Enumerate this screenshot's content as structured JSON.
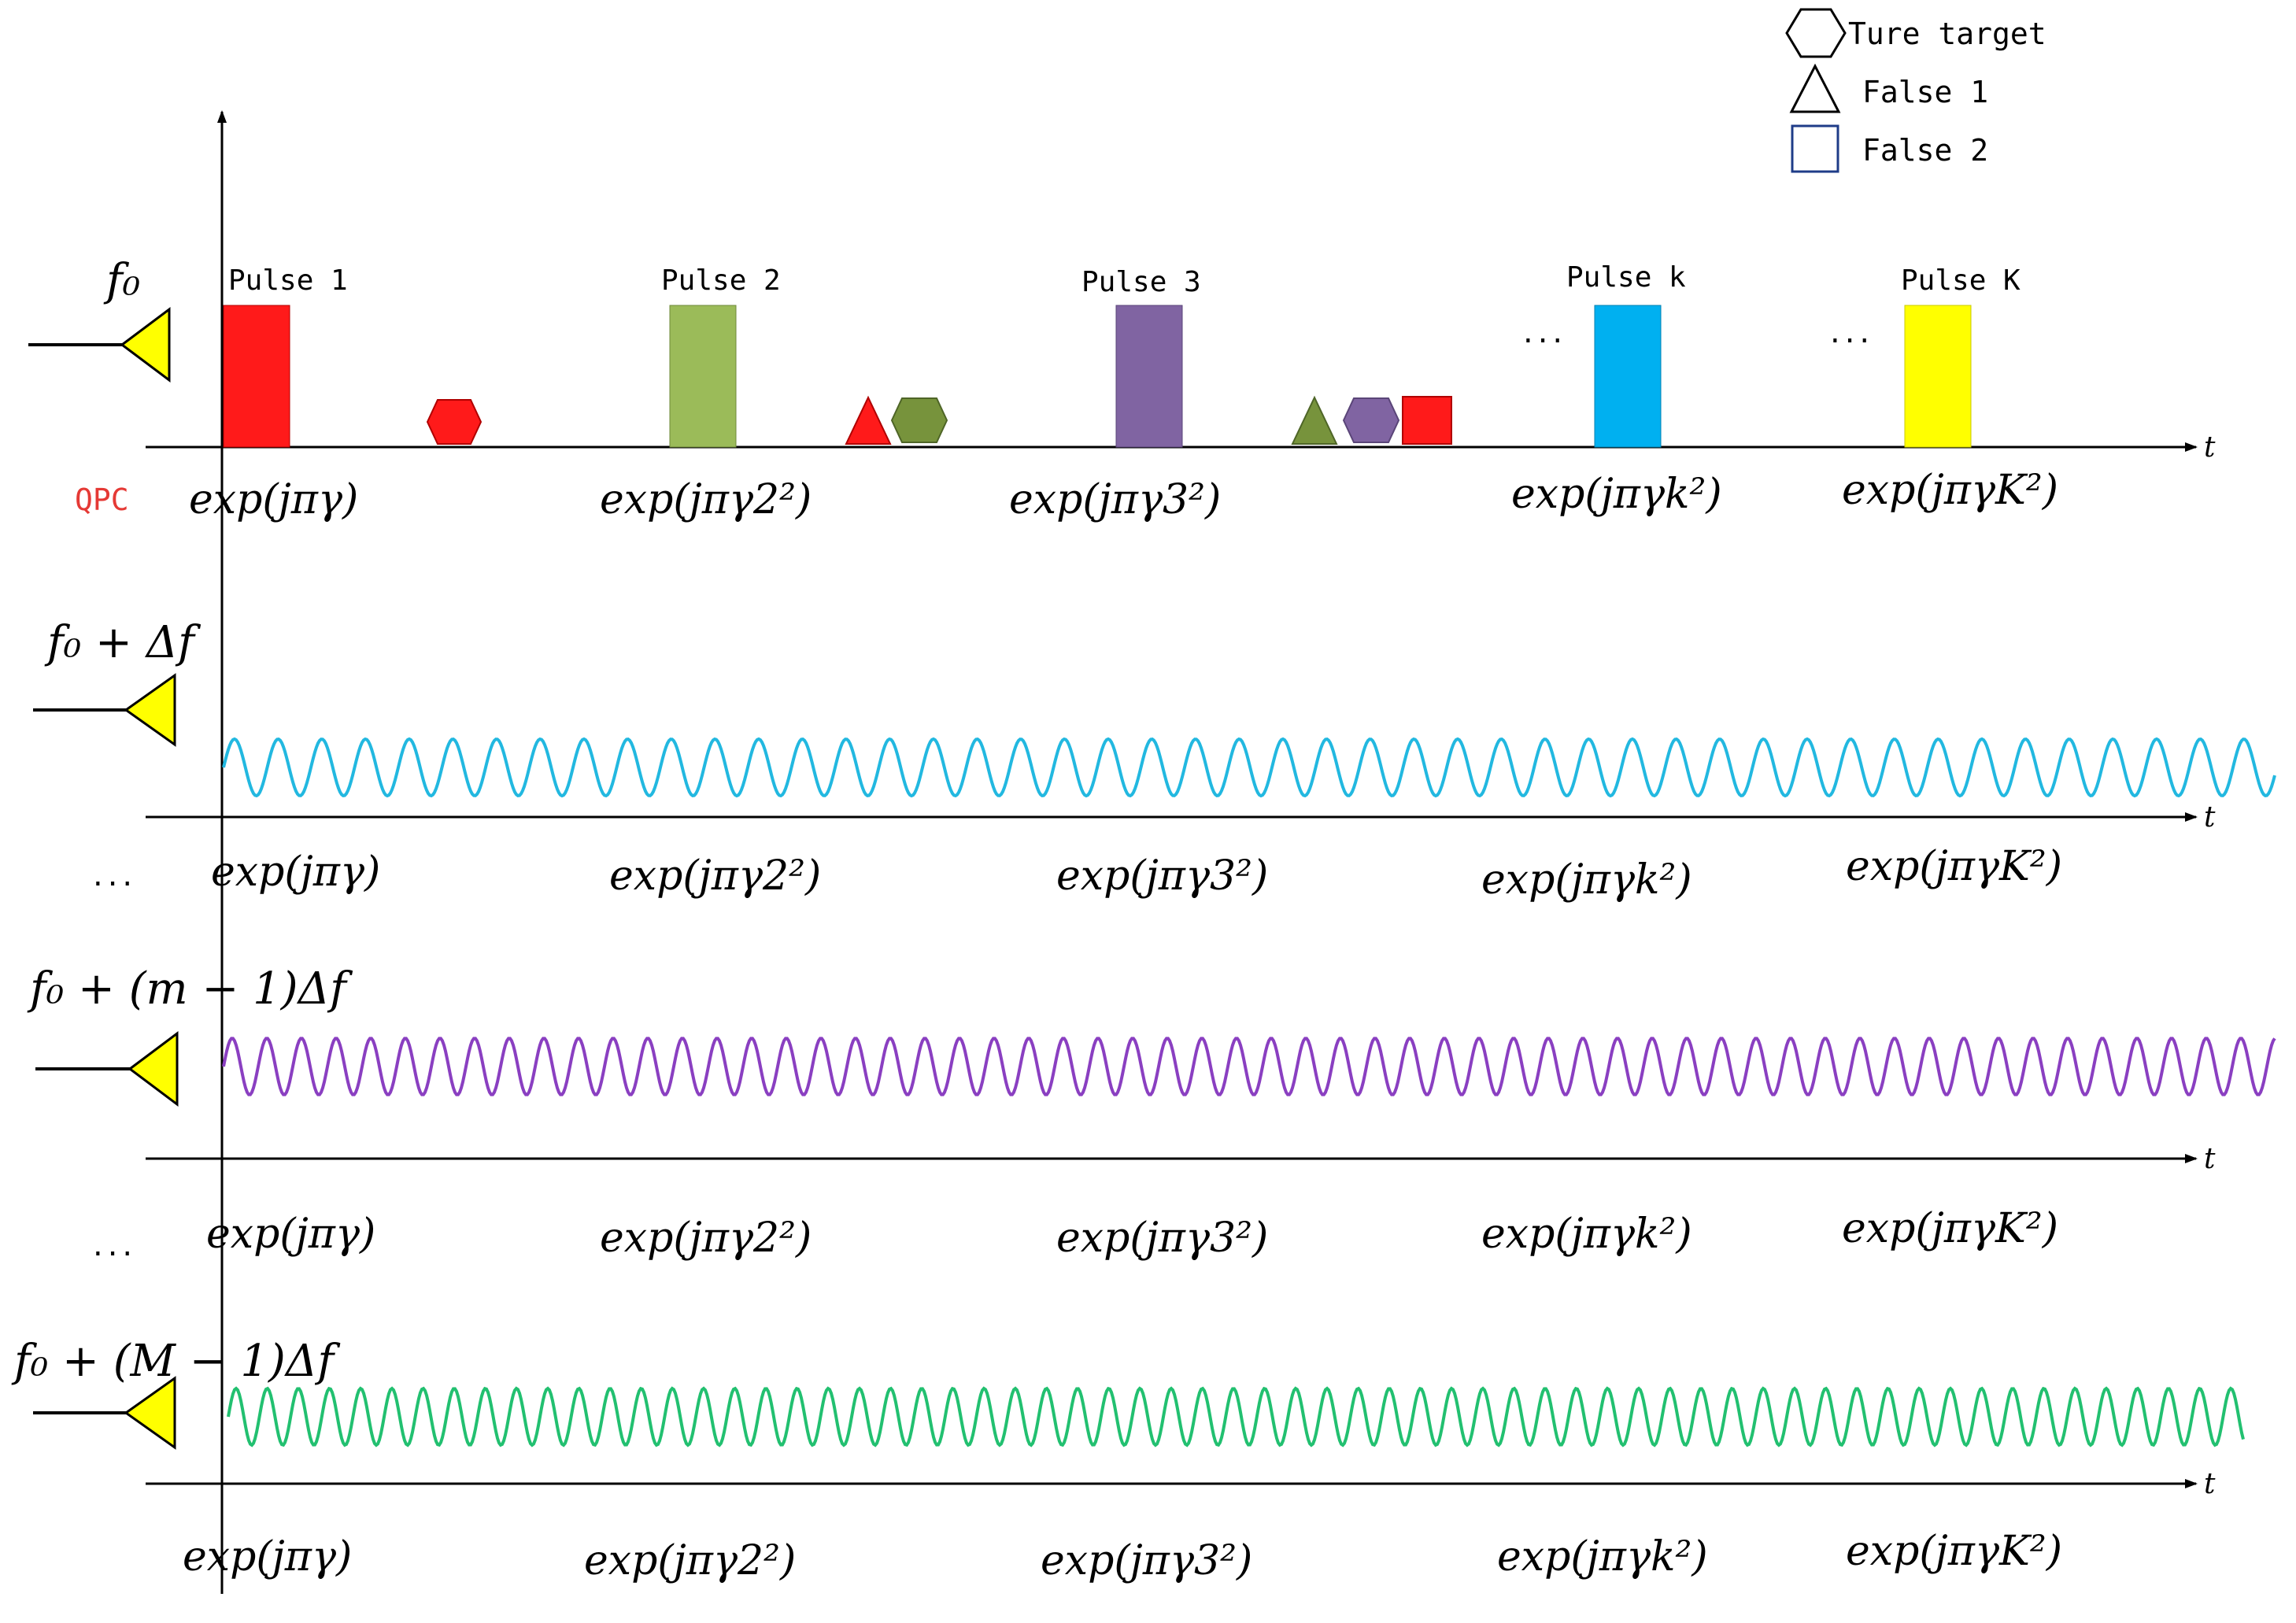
{
  "legend": {
    "true_target": "Ture target",
    "false1": "False 1",
    "false2": "False 2"
  },
  "qpc_label": "QPC",
  "axis_label": "t",
  "ellipsis": "...",
  "pulses": [
    "Pulse 1",
    "Pulse 2",
    "Pulse 3",
    "Pulse k",
    "Pulse K"
  ],
  "colors": {
    "pulse1": "#ff1a1a",
    "pulse2": "#9bbb59",
    "pulse3": "#8064a2",
    "pulsek": "#00b0f0",
    "pulseK": "#ffff00",
    "antenna": "#ffff00",
    "wave_row2": "#22b8e0",
    "wave_row3": "#8a3fc1",
    "wave_row4": "#22c070"
  },
  "rows": [
    {
      "frequency": "f₀",
      "codes": [
        "exp(jπγ)",
        "exp(jπγ2²)",
        "exp(jπγ3²)",
        "exp(jπγk²)",
        "exp(jπγK²)"
      ]
    },
    {
      "frequency": "f₀ + Δf",
      "codes": [
        "exp(jπγ)",
        "exp(jπγ2²)",
        "exp(jπγ3²)",
        "exp(jπγk²)",
        "exp(jπγK²)"
      ]
    },
    {
      "frequency": "f₀ + (m − 1)Δf",
      "codes": [
        "exp(jπγ)",
        "exp(jπγ2²)",
        "exp(jπγ3²)",
        "exp(jπγk²)",
        "exp(jπγK²)"
      ]
    },
    {
      "frequency": "f₀ + (M − 1)Δf",
      "codes": [
        "exp(jπγ)",
        "exp(jπγ2²)",
        "exp(jπγ3²)",
        "exp(jπγk²)",
        "exp(jπγK²)"
      ]
    }
  ]
}
